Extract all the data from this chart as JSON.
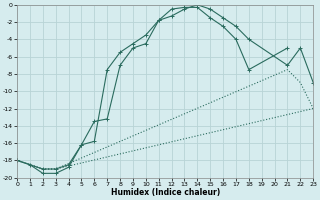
{
  "xlabel": "Humidex (Indice chaleur)",
  "bg_color": "#d6ecee",
  "grid_color": "#b8d4d6",
  "line_color": "#2a6b5e",
  "xlim": [
    0,
    23
  ],
  "ylim": [
    -20,
    0
  ],
  "xticks": [
    0,
    1,
    2,
    3,
    4,
    5,
    6,
    7,
    8,
    9,
    10,
    11,
    12,
    13,
    14,
    15,
    16,
    17,
    18,
    19,
    20,
    21,
    22,
    23
  ],
  "yticks": [
    0,
    -2,
    -4,
    -6,
    -8,
    -10,
    -12,
    -14,
    -16,
    -18,
    -20
  ],
  "curve1_x": [
    0,
    1,
    2,
    3,
    4,
    5,
    6,
    7,
    8,
    9,
    10,
    11,
    12,
    13,
    14,
    15,
    16,
    17,
    18,
    21
  ],
  "curve1_y": [
    -18,
    -18.5,
    -19.5,
    -19.5,
    -18.8,
    -16.2,
    -13.5,
    -13.2,
    -7.0,
    -5.0,
    -4.5,
    -1.8,
    -0.5,
    -0.3,
    -0.3,
    -1.5,
    -2.5,
    -4.0,
    -7.5,
    -5.0
  ],
  "curve2_x": [
    0,
    2,
    3,
    4,
    5,
    6,
    7,
    8,
    9,
    10,
    11,
    12,
    13,
    14,
    15,
    16,
    17,
    18,
    21,
    22,
    23
  ],
  "curve2_y": [
    -18,
    -19,
    -19,
    -18.5,
    -16.2,
    -15.8,
    -7.5,
    -5.5,
    -4.5,
    -3.5,
    -1.8,
    -1.3,
    -0.5,
    0.0,
    -0.5,
    -1.5,
    -2.5,
    -4.0,
    -7.0,
    -5.0,
    -9.0
  ],
  "curve3_x": [
    0,
    2,
    3,
    23
  ],
  "curve3_y": [
    -18,
    -19,
    -19,
    -12
  ],
  "curve4_x": [
    0,
    2,
    3,
    21,
    22,
    23
  ],
  "curve4_y": [
    -18,
    -19,
    -19,
    -7.5,
    -9.0,
    -12.0
  ]
}
